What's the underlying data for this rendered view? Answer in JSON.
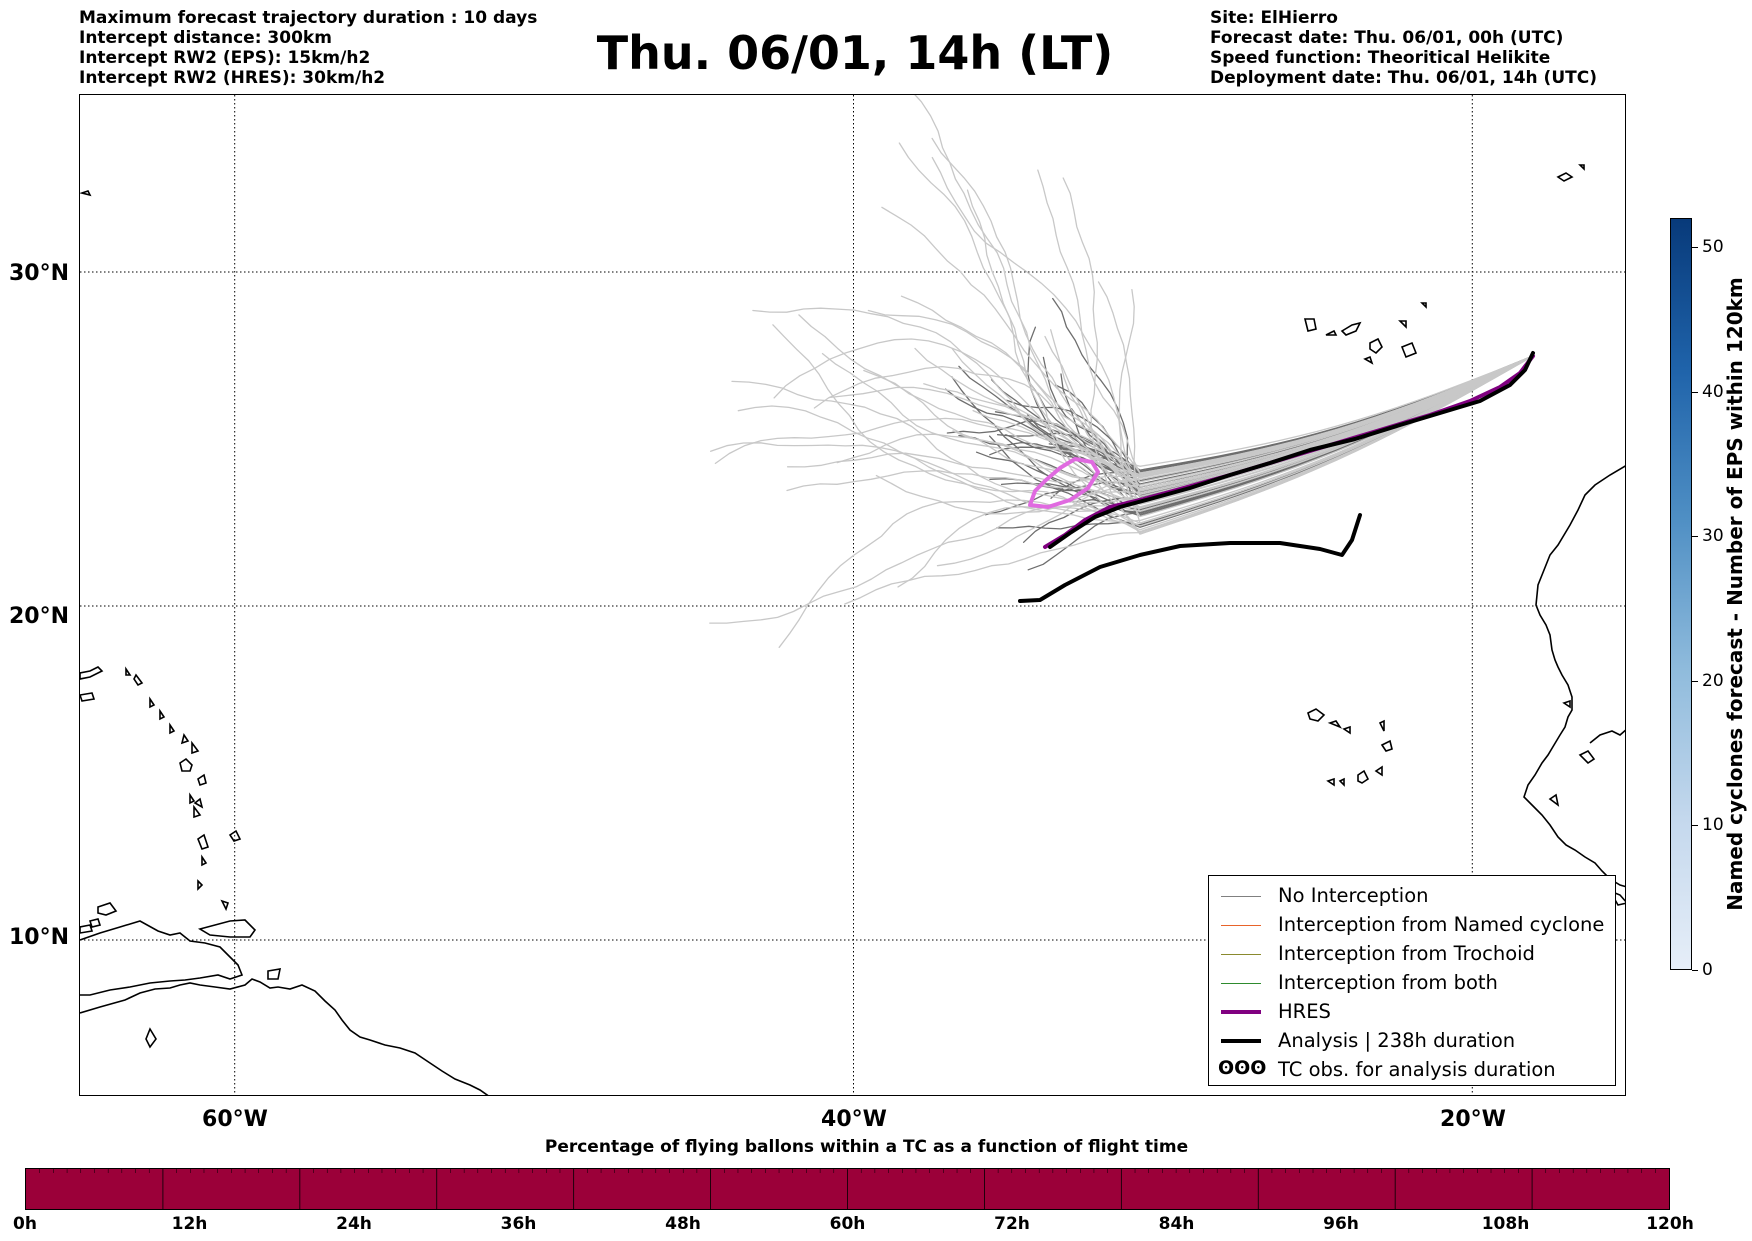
{
  "header": {
    "left": [
      "Maximum forecast trajectory duration : 10 days",
      "Intercept distance: 300km",
      "Intercept RW2 (EPS):  15km/h2",
      "Intercept RW2 (HRES): 30km/h2"
    ],
    "title": "Thu. 06/01, 14h (LT)",
    "right": [
      "Site: ElHierro",
      "Forecast date: Thu. 06/01, 00h (UTC)",
      "Speed function: Theoritical Helikite",
      "Deployment date: Thu. 06/01, 14h (UTC)"
    ]
  },
  "map": {
    "lat_labels": [
      "30°N",
      "20°N",
      "10°N"
    ],
    "lon_labels": [
      "60°W",
      "40°W",
      "20°W"
    ],
    "lat_values": [
      30,
      20,
      10
    ],
    "lon_values": [
      -60,
      -40,
      -20
    ],
    "extent": {
      "lon_min": -65,
      "lon_max": -15,
      "lat_min": 5.3,
      "lat_max": 35.3
    },
    "gridlines": true
  },
  "legend": {
    "items": [
      {
        "label": "No Interception",
        "color": "#808080",
        "style": "thin"
      },
      {
        "label": "Interception from Named cyclone",
        "color": "#e8632a",
        "style": "thin"
      },
      {
        "label": "Interception from Trochoid",
        "color": "#8a8a2e",
        "style": "thin"
      },
      {
        "label": "Interception from both",
        "color": "#2e8b2e",
        "style": "thin"
      },
      {
        "label": "HRES",
        "color": "#800080",
        "style": "thick"
      },
      {
        "label": "Analysis | 238h duration",
        "color": "#000000",
        "style": "thick"
      },
      {
        "label": "TC obs. for analysis duration",
        "color": "#000000",
        "style": "symbol",
        "symbol": "ʘʘʘ"
      }
    ]
  },
  "colorbar_right": {
    "label": "Named cyclones forecast - Number of EPS within 120km",
    "ticks": [
      "0",
      "10",
      "20",
      "30",
      "40",
      "50"
    ],
    "tick_values": [
      0,
      10,
      20,
      30,
      40,
      50
    ],
    "max": 52
  },
  "colorbar_bottom": {
    "title": "Percentage of flying ballons within a TC as a function of flight time",
    "ticks": [
      "0h",
      "12h",
      "24h",
      "36h",
      "48h",
      "60h",
      "72h",
      "84h",
      "96h",
      "108h",
      "120h"
    ],
    "fill_color": "#9b0039"
  },
  "colors": {
    "eps_light": "#c8c8c8",
    "eps_dark": "#6e6e6e",
    "hres": "#800080",
    "analysis": "#000000",
    "hres_initial_contour": "#e06ae0"
  }
}
